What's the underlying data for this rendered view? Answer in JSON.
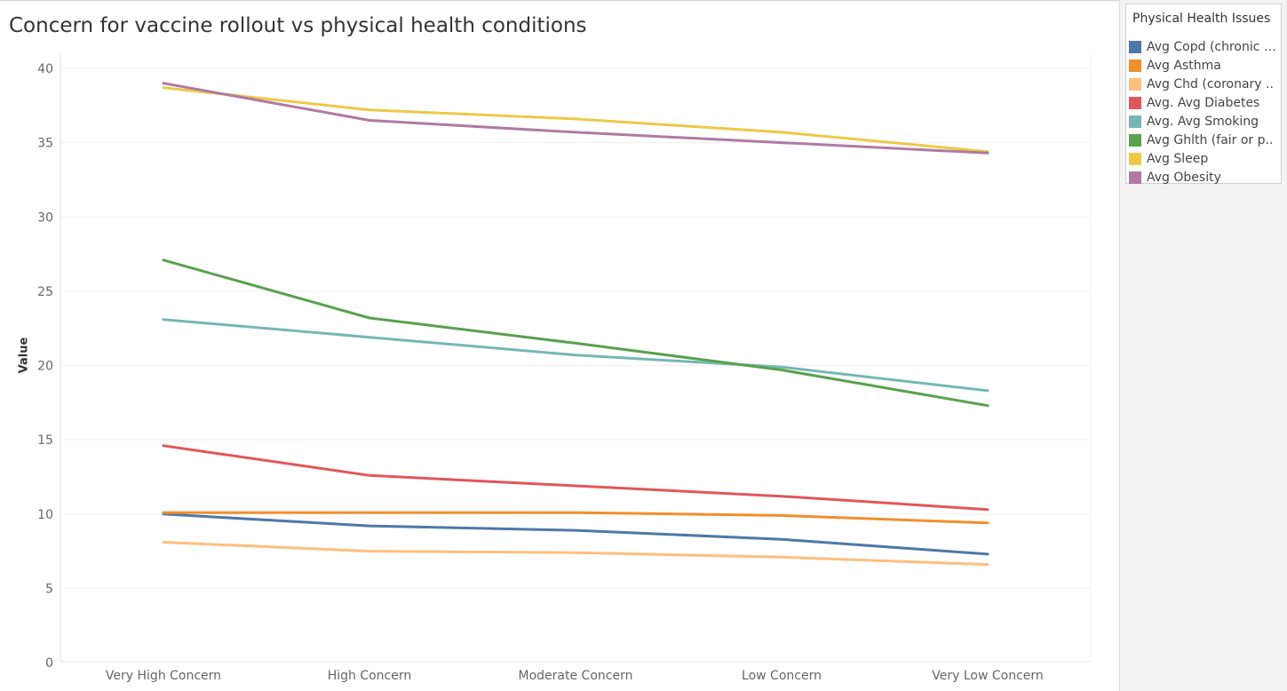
{
  "title": "Concern for vaccine rollout vs physical health conditions",
  "legend": {
    "title": "Physical Health Issues",
    "items": [
      {
        "label": "Avg Copd (chronic o..",
        "color": "#4e79a7"
      },
      {
        "label": "Avg Asthma",
        "color": "#f28e2b"
      },
      {
        "label": "Avg Chd (coronary ..",
        "color": "#ffbe7d"
      },
      {
        "label": "Avg. Avg Diabetes",
        "color": "#e15759"
      },
      {
        "label": "Avg. Avg Smoking",
        "color": "#76b7b2"
      },
      {
        "label": "Avg Ghlth (fair or p..",
        "color": "#59a14f"
      },
      {
        "label": "Avg Sleep",
        "color": "#edc948"
      },
      {
        "label": "Avg Obesity",
        "color": "#b07aa1"
      }
    ]
  },
  "chart_data": {
    "type": "line",
    "title": "Concern for vaccine rollout vs physical health conditions",
    "xlabel": "",
    "ylabel": "Value",
    "ylim": [
      0,
      40
    ],
    "yticks": [
      0,
      5,
      10,
      15,
      20,
      25,
      30,
      35,
      40
    ],
    "grid": true,
    "legend_position": "right",
    "categories": [
      "Very High Concern",
      "High Concern",
      "Moderate Concern",
      "Low Concern",
      "Very Low Concern"
    ],
    "series": [
      {
        "name": "Avg Copd (chronic o..",
        "color": "#4e79a7",
        "values": [
          10.0,
          9.2,
          8.9,
          8.3,
          7.3
        ]
      },
      {
        "name": "Avg Asthma",
        "color": "#f28e2b",
        "values": [
          10.1,
          10.1,
          10.1,
          9.9,
          9.4
        ]
      },
      {
        "name": "Avg Chd (coronary ..",
        "color": "#ffbe7d",
        "values": [
          8.1,
          7.5,
          7.4,
          7.1,
          6.6
        ]
      },
      {
        "name": "Avg. Avg Diabetes",
        "color": "#e15759",
        "values": [
          14.6,
          12.6,
          11.9,
          11.2,
          10.3
        ]
      },
      {
        "name": "Avg. Avg Smoking",
        "color": "#76b7b2",
        "values": [
          23.1,
          21.9,
          20.7,
          19.9,
          18.3
        ]
      },
      {
        "name": "Avg Ghlth (fair or p..",
        "color": "#59a14f",
        "values": [
          27.1,
          23.2,
          21.5,
          19.7,
          17.3
        ]
      },
      {
        "name": "Avg Sleep",
        "color": "#edc948",
        "values": [
          38.7,
          37.2,
          36.6,
          35.7,
          34.4
        ]
      },
      {
        "name": "Avg Obesity",
        "color": "#b07aa1",
        "values": [
          39.0,
          36.5,
          35.7,
          35.0,
          34.3
        ]
      }
    ]
  }
}
